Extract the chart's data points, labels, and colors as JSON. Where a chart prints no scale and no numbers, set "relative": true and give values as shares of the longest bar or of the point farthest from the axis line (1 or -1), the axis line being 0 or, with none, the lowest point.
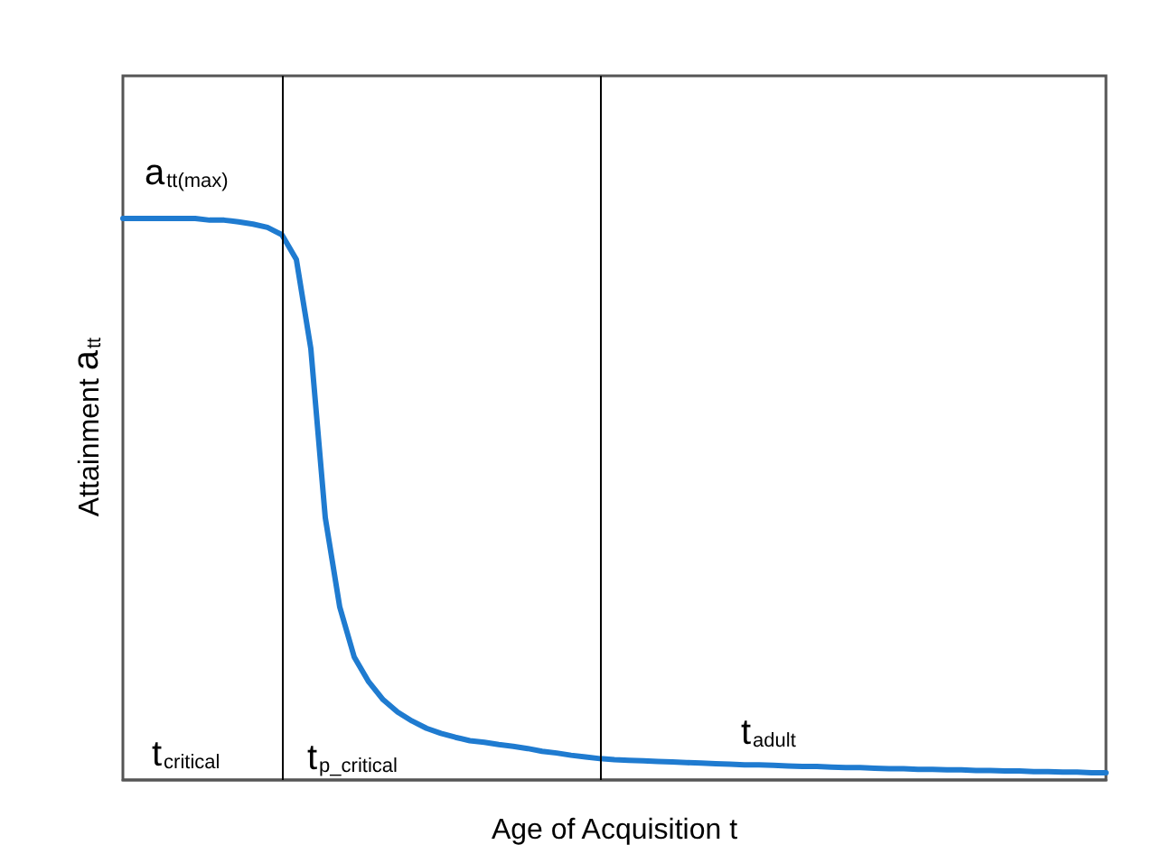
{
  "chart_data": {
    "type": "line",
    "relative": true,
    "xlabel": "Age of Acquisition t",
    "ylabel": "Attainment a$_{tt}$",
    "categories": [
      null,
      null,
      null,
      null,
      null,
      null,
      null,
      null,
      null,
      null,
      null,
      null,
      null,
      null,
      null,
      null,
      null,
      null,
      null,
      null,
      null,
      null,
      null,
      null,
      null,
      null,
      null,
      null,
      null,
      null,
      null,
      null,
      null,
      null,
      null,
      null,
      null,
      null,
      null,
      null,
      null,
      null,
      null,
      null,
      null,
      null,
      null,
      null,
      null,
      null,
      null,
      null,
      null,
      null,
      null,
      null,
      null,
      null,
      null,
      null,
      null,
      null,
      null,
      null,
      null,
      null,
      null,
      null,
      null
    ],
    "series": [
      {
        "color": "#1f7bd0",
        "values": [
          1.0,
          1.0,
          1.0,
          1.0,
          1.0,
          1.0,
          0.997,
          0.997,
          0.994,
          0.99,
          0.984,
          0.971,
          0.927,
          0.768,
          0.467,
          0.308,
          0.219,
          0.175,
          0.143,
          0.121,
          0.105,
          0.092,
          0.083,
          0.076,
          0.07,
          0.067,
          0.063,
          0.06,
          0.056,
          0.051,
          0.048,
          0.044,
          0.041,
          0.038,
          0.036,
          0.035,
          0.034,
          0.033,
          0.032,
          0.031,
          0.03,
          0.029,
          0.028,
          0.027,
          0.027,
          0.026,
          0.025,
          0.024,
          0.024,
          0.023,
          0.022,
          0.022,
          0.021,
          0.02,
          0.02,
          0.019,
          0.019,
          0.018,
          0.018,
          0.017,
          0.017,
          0.016,
          0.016,
          0.015,
          0.015,
          0.014,
          0.014,
          0.013,
          0.013
        ]
      }
    ],
    "annotations": [
      "a$_{tt(max)}$",
      "t$_{critical}$",
      "t$_{p_critical}$",
      "t$_{adult}$"
    ],
    "grid": false,
    "line_style": "solid"
  }
}
